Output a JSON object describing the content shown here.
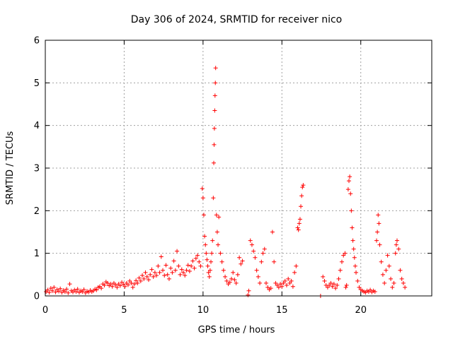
{
  "chart_data": {
    "type": "scatter",
    "title": "Day 306 of 2024, SRMTID for receiver nico",
    "xlabel": "GPS time / hours",
    "ylabel": "SRMTID / TECUs",
    "xlim": [
      0,
      24.5
    ],
    "ylim": [
      0,
      6
    ],
    "xticks": [
      0,
      5,
      10,
      15,
      20
    ],
    "yticks": [
      0,
      1,
      2,
      3,
      4,
      5,
      6
    ],
    "grid": true,
    "marker": "plus",
    "color": "#ff0000",
    "series": [
      {
        "name": "SRMTID",
        "points": [
          [
            0.05,
            0.1
          ],
          [
            0.15,
            0.14
          ],
          [
            0.25,
            0.08
          ],
          [
            0.35,
            0.18
          ],
          [
            0.45,
            0.12
          ],
          [
            0.55,
            0.2
          ],
          [
            0.65,
            0.09
          ],
          [
            0.75,
            0.15
          ],
          [
            0.85,
            0.11
          ],
          [
            0.95,
            0.17
          ],
          [
            1.05,
            0.08
          ],
          [
            1.15,
            0.13
          ],
          [
            1.25,
            0.1
          ],
          [
            1.35,
            0.16
          ],
          [
            1.45,
            0.07
          ],
          [
            1.55,
            0.28
          ],
          [
            1.65,
            0.12
          ],
          [
            1.75,
            0.09
          ],
          [
            1.85,
            0.14
          ],
          [
            1.95,
            0.1
          ],
          [
            2.05,
            0.16
          ],
          [
            2.15,
            0.08
          ],
          [
            2.25,
            0.12
          ],
          [
            2.35,
            0.1
          ],
          [
            2.45,
            0.15
          ],
          [
            2.55,
            0.07
          ],
          [
            2.65,
            0.11
          ],
          [
            2.75,
            0.09
          ],
          [
            2.85,
            0.13
          ],
          [
            2.95,
            0.1
          ],
          [
            3.05,
            0.12
          ],
          [
            3.15,
            0.16
          ],
          [
            3.25,
            0.14
          ],
          [
            3.35,
            0.2
          ],
          [
            3.45,
            0.22
          ],
          [
            3.55,
            0.18
          ],
          [
            3.65,
            0.28
          ],
          [
            3.75,
            0.25
          ],
          [
            3.85,
            0.33
          ],
          [
            3.95,
            0.3
          ],
          [
            4.05,
            0.24
          ],
          [
            4.15,
            0.28
          ],
          [
            4.25,
            0.22
          ],
          [
            4.35,
            0.3
          ],
          [
            4.45,
            0.26
          ],
          [
            4.55,
            0.2
          ],
          [
            4.65,
            0.28
          ],
          [
            4.75,
            0.24
          ],
          [
            4.85,
            0.32
          ],
          [
            4.95,
            0.27
          ],
          [
            5.05,
            0.22
          ],
          [
            5.15,
            0.3
          ],
          [
            5.25,
            0.26
          ],
          [
            5.35,
            0.35
          ],
          [
            5.45,
            0.3
          ],
          [
            5.55,
            0.2
          ],
          [
            5.65,
            0.28
          ],
          [
            5.75,
            0.36
          ],
          [
            5.85,
            0.3
          ],
          [
            5.95,
            0.42
          ],
          [
            6.05,
            0.35
          ],
          [
            6.15,
            0.48
          ],
          [
            6.25,
            0.4
          ],
          [
            6.35,
            0.55
          ],
          [
            6.45,
            0.45
          ],
          [
            6.55,
            0.38
          ],
          [
            6.65,
            0.5
          ],
          [
            6.75,
            0.62
          ],
          [
            6.85,
            0.45
          ],
          [
            6.95,
            0.55
          ],
          [
            7.05,
            0.48
          ],
          [
            7.15,
            0.7
          ],
          [
            7.25,
            0.55
          ],
          [
            7.35,
            0.92
          ],
          [
            7.45,
            0.6
          ],
          [
            7.55,
            0.48
          ],
          [
            7.65,
            0.72
          ],
          [
            7.75,
            0.5
          ],
          [
            7.85,
            0.4
          ],
          [
            7.95,
            0.65
          ],
          [
            8.05,
            0.55
          ],
          [
            8.15,
            0.82
          ],
          [
            8.25,
            0.6
          ],
          [
            8.35,
            1.05
          ],
          [
            8.45,
            0.7
          ],
          [
            8.55,
            0.5
          ],
          [
            8.65,
            0.62
          ],
          [
            8.75,
            0.55
          ],
          [
            8.85,
            0.48
          ],
          [
            8.95,
            0.6
          ],
          [
            9.05,
            0.72
          ],
          [
            9.15,
            0.58
          ],
          [
            9.25,
            0.7
          ],
          [
            9.35,
            0.82
          ],
          [
            9.45,
            0.65
          ],
          [
            9.55,
            0.88
          ],
          [
            9.65,
            0.95
          ],
          [
            9.75,
            0.8
          ],
          [
            9.85,
            0.7
          ],
          [
            9.95,
            2.52
          ],
          [
            10.0,
            2.3
          ],
          [
            10.05,
            1.9
          ],
          [
            10.1,
            1.4
          ],
          [
            10.15,
            1.2
          ],
          [
            10.2,
            1.0
          ],
          [
            10.25,
            0.85
          ],
          [
            10.3,
            0.7
          ],
          [
            10.35,
            0.55
          ],
          [
            10.4,
            0.45
          ],
          [
            10.45,
            0.6
          ],
          [
            10.5,
            0.8
          ],
          [
            10.55,
            1.0
          ],
          [
            10.6,
            1.3
          ],
          [
            10.65,
            2.3
          ],
          [
            10.68,
            3.12
          ],
          [
            10.7,
            3.55
          ],
          [
            10.72,
            3.93
          ],
          [
            10.74,
            4.35
          ],
          [
            10.76,
            4.7
          ],
          [
            10.78,
            5.0
          ],
          [
            10.8,
            5.35
          ],
          [
            10.85,
            1.9
          ],
          [
            10.9,
            1.5
          ],
          [
            10.95,
            1.2
          ],
          [
            11.0,
            1.85
          ],
          [
            11.1,
            1.0
          ],
          [
            11.2,
            0.8
          ],
          [
            11.3,
            0.6
          ],
          [
            11.4,
            0.45
          ],
          [
            11.5,
            0.35
          ],
          [
            11.6,
            0.28
          ],
          [
            11.7,
            0.32
          ],
          [
            11.8,
            0.4
          ],
          [
            11.9,
            0.55
          ],
          [
            12.0,
            0.38
          ],
          [
            12.1,
            0.3
          ],
          [
            12.2,
            0.5
          ],
          [
            12.3,
            0.9
          ],
          [
            12.4,
            0.75
          ],
          [
            12.5,
            0.82
          ],
          [
            12.85,
            0.02
          ],
          [
            12.9,
            0.12
          ],
          [
            13.0,
            1.3
          ],
          [
            13.1,
            1.2
          ],
          [
            13.2,
            1.05
          ],
          [
            13.3,
            0.9
          ],
          [
            13.4,
            0.6
          ],
          [
            13.5,
            0.45
          ],
          [
            13.6,
            0.3
          ],
          [
            13.7,
            0.8
          ],
          [
            13.8,
            1.0
          ],
          [
            13.9,
            1.1
          ],
          [
            14.0,
            0.3
          ],
          [
            14.1,
            0.2
          ],
          [
            14.2,
            0.15
          ],
          [
            14.3,
            0.18
          ],
          [
            14.4,
            1.5
          ],
          [
            14.5,
            0.8
          ],
          [
            14.6,
            0.3
          ],
          [
            14.7,
            0.25
          ],
          [
            14.8,
            0.2
          ],
          [
            14.9,
            0.28
          ],
          [
            15.0,
            0.22
          ],
          [
            15.1,
            0.3
          ],
          [
            15.2,
            0.35
          ],
          [
            15.3,
            0.25
          ],
          [
            15.4,
            0.4
          ],
          [
            15.5,
            0.3
          ],
          [
            15.6,
            0.35
          ],
          [
            15.7,
            0.22
          ],
          [
            15.8,
            0.55
          ],
          [
            15.9,
            0.7
          ],
          [
            16.0,
            1.6
          ],
          [
            16.05,
            1.55
          ],
          [
            16.1,
            1.7
          ],
          [
            16.15,
            1.8
          ],
          [
            16.2,
            2.1
          ],
          [
            16.25,
            2.35
          ],
          [
            16.3,
            2.55
          ],
          [
            16.35,
            2.6
          ],
          [
            17.45,
            0.0
          ],
          [
            17.6,
            0.45
          ],
          [
            17.7,
            0.35
          ],
          [
            17.8,
            0.25
          ],
          [
            17.9,
            0.2
          ],
          [
            18.0,
            0.25
          ],
          [
            18.1,
            0.3
          ],
          [
            18.2,
            0.22
          ],
          [
            18.3,
            0.28
          ],
          [
            18.4,
            0.18
          ],
          [
            18.5,
            0.25
          ],
          [
            18.6,
            0.4
          ],
          [
            18.7,
            0.6
          ],
          [
            18.8,
            0.8
          ],
          [
            18.9,
            0.95
          ],
          [
            19.0,
            1.0
          ],
          [
            19.05,
            0.2
          ],
          [
            19.1,
            0.25
          ],
          [
            19.2,
            2.5
          ],
          [
            19.25,
            2.7
          ],
          [
            19.3,
            2.8
          ],
          [
            19.35,
            2.4
          ],
          [
            19.4,
            2.0
          ],
          [
            19.45,
            1.6
          ],
          [
            19.5,
            1.3
          ],
          [
            19.55,
            1.1
          ],
          [
            19.6,
            0.9
          ],
          [
            19.65,
            0.7
          ],
          [
            19.7,
            0.55
          ],
          [
            19.8,
            0.35
          ],
          [
            19.9,
            0.2
          ],
          [
            20.0,
            0.15
          ],
          [
            20.1,
            0.12
          ],
          [
            20.2,
            0.1
          ],
          [
            20.3,
            0.08
          ],
          [
            20.4,
            0.12
          ],
          [
            20.5,
            0.1
          ],
          [
            20.6,
            0.14
          ],
          [
            20.7,
            0.09
          ],
          [
            20.8,
            0.12
          ],
          [
            20.9,
            0.1
          ],
          [
            21.0,
            1.3
          ],
          [
            21.05,
            1.5
          ],
          [
            21.1,
            1.9
          ],
          [
            21.15,
            1.7
          ],
          [
            21.2,
            1.2
          ],
          [
            21.3,
            0.8
          ],
          [
            21.4,
            0.5
          ],
          [
            21.5,
            0.3
          ],
          [
            21.6,
            0.6
          ],
          [
            21.7,
            0.95
          ],
          [
            21.8,
            0.7
          ],
          [
            21.9,
            0.4
          ],
          [
            22.0,
            0.2
          ],
          [
            22.1,
            0.3
          ],
          [
            22.2,
            1.0
          ],
          [
            22.25,
            1.2
          ],
          [
            22.3,
            1.3
          ],
          [
            22.4,
            1.1
          ],
          [
            22.5,
            0.6
          ],
          [
            22.6,
            0.4
          ],
          [
            22.7,
            0.3
          ],
          [
            22.8,
            0.2
          ]
        ]
      }
    ]
  }
}
